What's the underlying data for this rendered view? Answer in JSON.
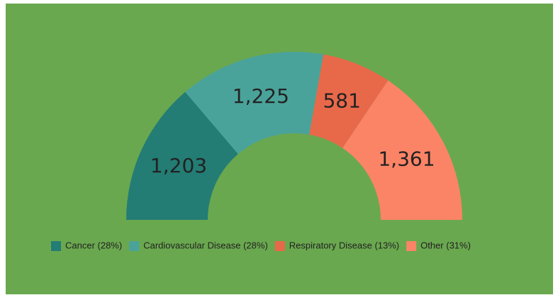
{
  "chart_data": {
    "type": "semi-donut",
    "categories": [
      "Cancer (28%)",
      "Cardiovascular Disease (28%)",
      "Respiratory Disease (13%)",
      "Other (31%)"
    ],
    "values": [
      1203,
      1225,
      581,
      1361
    ],
    "value_labels": [
      "1,203",
      "1,225",
      "581",
      "1,361"
    ],
    "colors": [
      "#237d74",
      "#4aa39a",
      "#e8694a",
      "#fb8466"
    ],
    "legend": "bottom"
  }
}
